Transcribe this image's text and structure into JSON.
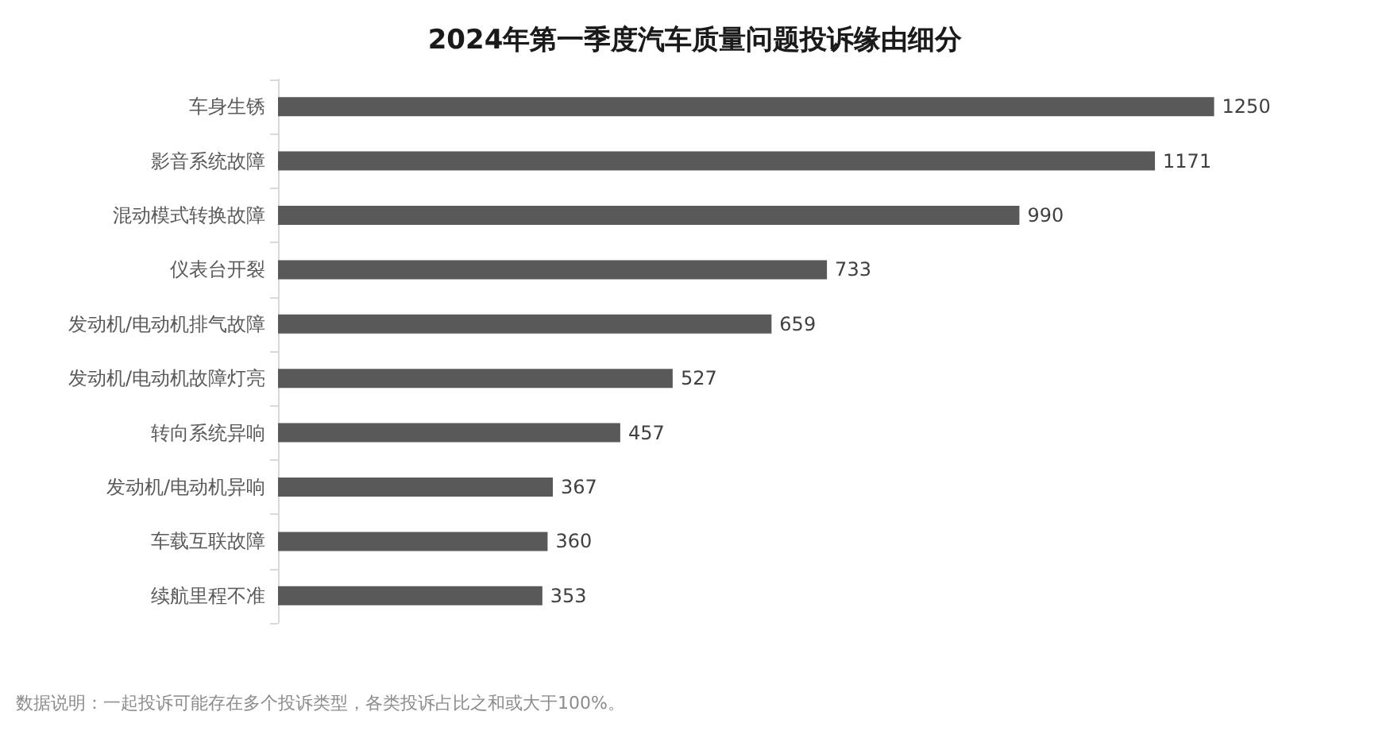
{
  "chart_data": {
    "type": "bar",
    "orientation": "horizontal",
    "title": "2024年第一季度汽车质量问题投诉缘由细分",
    "categories": [
      "车身生锈",
      "影音系统故障",
      "混动模式转换故障",
      "仪表台开裂",
      "发动机/电动机排气故障",
      "发动机/电动机故障灯亮",
      "转向系统异响",
      "发动机/电动机异响",
      "车载互联故障",
      "续航里程不准"
    ],
    "values": [
      1250,
      1171,
      990,
      733,
      659,
      527,
      457,
      367,
      360,
      353
    ],
    "color": "#595959",
    "data_labels": true,
    "annotations": [
      "数据说明：一起投诉可能存在多个投诉类型，各类投诉占比之和或大于100%。"
    ]
  }
}
